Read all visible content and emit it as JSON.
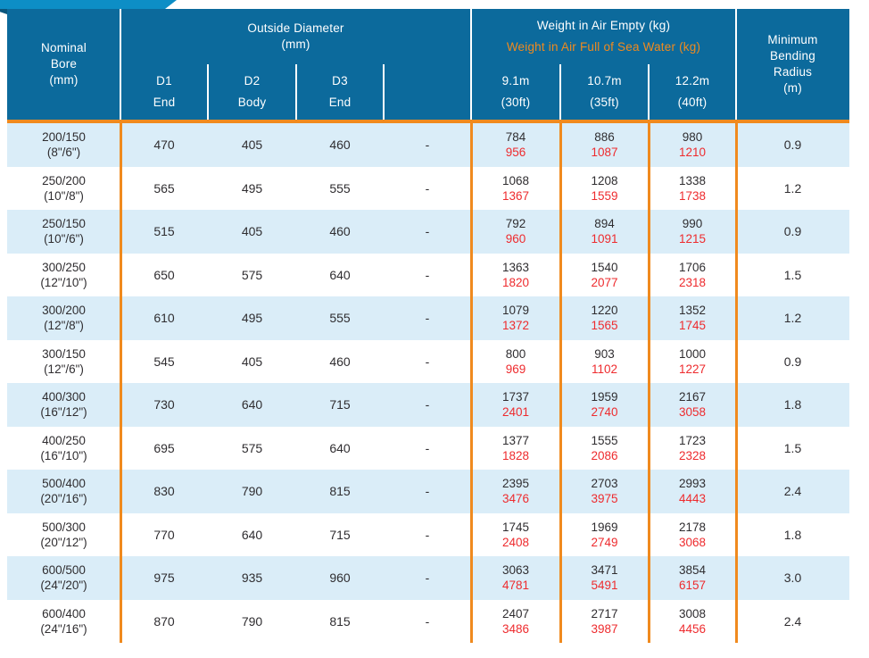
{
  "colors": {
    "header_bg": "#0c6a9c",
    "ribbon": "#0d8ec6",
    "accent_orange": "#f08a1e",
    "weight_full_red": "#ee2b2e",
    "row_alt_blue": "#daedf8",
    "body_text": "#2f2d30"
  },
  "table": {
    "header": {
      "nominal_bore": [
        "Nominal",
        "Bore",
        "(mm)"
      ],
      "od_group": [
        "Outside Diameter",
        "(mm)"
      ],
      "od_subcols": [
        {
          "code": "D1",
          "pos": "End"
        },
        {
          "code": "D2",
          "pos": "Body"
        },
        {
          "code": "D3",
          "pos": "End"
        },
        {
          "code": "",
          "pos": ""
        }
      ],
      "weight_empty_label": "Weight in Air Empty (kg)",
      "weight_full_label": "Weight in Air Full of Sea Water (kg)",
      "weight_subcols": [
        {
          "length": "9.1m",
          "feet": "(30ft)"
        },
        {
          "length": "10.7m",
          "feet": "(35ft)"
        },
        {
          "length": "12.2m",
          "feet": "(40ft)"
        }
      ],
      "min_bending": [
        "Minimum",
        "Bending",
        "Radius",
        "(m)"
      ]
    },
    "rows": [
      {
        "bore": "200/150",
        "inches": "(8\"/6\")",
        "d1": "470",
        "d2": "405",
        "d3": "460",
        "d4": "-",
        "w1e": "784",
        "w1f": "956",
        "w2e": "886",
        "w2f": "1087",
        "w3e": "980",
        "w3f": "1210",
        "radius": "0.9"
      },
      {
        "bore": "250/200",
        "inches": "(10\"/8\")",
        "d1": "565",
        "d2": "495",
        "d3": "555",
        "d4": "-",
        "w1e": "1068",
        "w1f": "1367",
        "w2e": "1208",
        "w2f": "1559",
        "w3e": "1338",
        "w3f": "1738",
        "radius": "1.2"
      },
      {
        "bore": "250/150",
        "inches": "(10\"/6\")",
        "d1": "515",
        "d2": "405",
        "d3": "460",
        "d4": "-",
        "w1e": "792",
        "w1f": "960",
        "w2e": "894",
        "w2f": "1091",
        "w3e": "990",
        "w3f": "1215",
        "radius": "0.9"
      },
      {
        "bore": "300/250",
        "inches": "(12\"/10\")",
        "d1": "650",
        "d2": "575",
        "d3": "640",
        "d4": "-",
        "w1e": "1363",
        "w1f": "1820",
        "w2e": "1540",
        "w2f": "2077",
        "w3e": "1706",
        "w3f": "2318",
        "radius": "1.5"
      },
      {
        "bore": "300/200",
        "inches": "(12\"/8\")",
        "d1": "610",
        "d2": "495",
        "d3": "555",
        "d4": "-",
        "w1e": "1079",
        "w1f": "1372",
        "w2e": "1220",
        "w2f": "1565",
        "w3e": "1352",
        "w3f": "1745",
        "radius": "1.2"
      },
      {
        "bore": "300/150",
        "inches": "(12\"/6\")",
        "d1": "545",
        "d2": "405",
        "d3": "460",
        "d4": "-",
        "w1e": "800",
        "w1f": "969",
        "w2e": "903",
        "w2f": "1102",
        "w3e": "1000",
        "w3f": "1227",
        "radius": "0.9"
      },
      {
        "bore": "400/300",
        "inches": "(16\"/12\")",
        "d1": "730",
        "d2": "640",
        "d3": "715",
        "d4": "-",
        "w1e": "1737",
        "w1f": "2401",
        "w2e": "1959",
        "w2f": "2740",
        "w3e": "2167",
        "w3f": "3058",
        "radius": "1.8"
      },
      {
        "bore": "400/250",
        "inches": "(16\"/10\")",
        "d1": "695",
        "d2": "575",
        "d3": "640",
        "d4": "-",
        "w1e": "1377",
        "w1f": "1828",
        "w2e": "1555",
        "w2f": "2086",
        "w3e": "1723",
        "w3f": "2328",
        "radius": "1.5"
      },
      {
        "bore": "500/400",
        "inches": "(20\"/16\")",
        "d1": "830",
        "d2": "790",
        "d3": "815",
        "d4": "-",
        "w1e": "2395",
        "w1f": "3476",
        "w2e": "2703",
        "w2f": "3975",
        "w3e": "2993",
        "w3f": "4443",
        "radius": "2.4"
      },
      {
        "bore": "500/300",
        "inches": "(20\"/12\")",
        "d1": "770",
        "d2": "640",
        "d3": "715",
        "d4": "-",
        "w1e": "1745",
        "w1f": "2408",
        "w2e": "1969",
        "w2f": "2749",
        "w3e": "2178",
        "w3f": "3068",
        "radius": "1.8"
      },
      {
        "bore": "600/500",
        "inches": "(24\"/20\")",
        "d1": "975",
        "d2": "935",
        "d3": "960",
        "d4": "-",
        "w1e": "3063",
        "w1f": "4781",
        "w2e": "3471",
        "w2f": "5491",
        "w3e": "3854",
        "w3f": "6157",
        "radius": "3.0"
      },
      {
        "bore": "600/400",
        "inches": "(24\"/16\")",
        "d1": "870",
        "d2": "790",
        "d3": "815",
        "d4": "-",
        "w1e": "2407",
        "w1f": "3486",
        "w2e": "2717",
        "w2f": "3987",
        "w3e": "3008",
        "w3f": "4456",
        "radius": "2.4"
      }
    ]
  }
}
